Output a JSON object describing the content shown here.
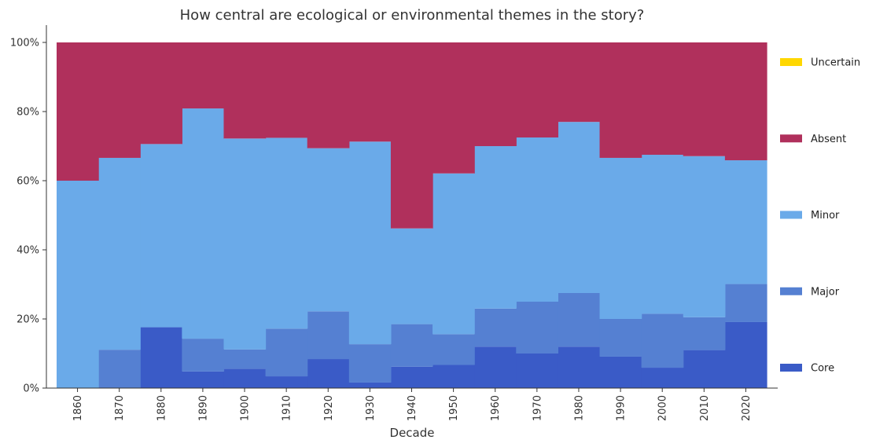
{
  "chart_data": {
    "type": "area",
    "title": "How central are ecological or environmental themes in the story?",
    "xlabel": "Decade",
    "ylabel": "",
    "ylim": [
      0,
      100
    ],
    "yticks": [
      "0%",
      "20%",
      "40%",
      "60%",
      "80%",
      "100%"
    ],
    "categories": [
      "1860",
      "1870",
      "1880",
      "1890",
      "1900",
      "1910",
      "1920",
      "1930",
      "1940",
      "1950",
      "1960",
      "1970",
      "1980",
      "1990",
      "2000",
      "2010",
      "2020"
    ],
    "series": [
      {
        "name": "Core",
        "color": "#3a5bc7",
        "values": [
          0,
          0,
          17.6,
          4.8,
          5.6,
          3.4,
          8.4,
          1.6,
          6.2,
          6.7,
          12,
          10,
          12,
          9.1,
          5.9,
          11,
          19.1
        ]
      },
      {
        "name": "Major",
        "color": "#5580d2",
        "values": [
          0,
          11.1,
          0,
          9.5,
          5.6,
          13.8,
          13.8,
          11.1,
          12.3,
          8.9,
          11,
          15,
          15.5,
          10.9,
          15.6,
          9.5,
          11
        ]
      },
      {
        "name": "Minor",
        "color": "#6aaae9",
        "values": [
          60,
          55.5,
          53,
          66.6,
          61,
          55.2,
          47.2,
          58.6,
          27.7,
          46.5,
          47,
          47.5,
          49.5,
          46.6,
          46,
          46.6,
          35.8
        ]
      },
      {
        "name": "Absent",
        "color": "#b0305c",
        "values": [
          40,
          33.4,
          29.4,
          19.1,
          27.8,
          27.6,
          30.6,
          28.7,
          53.8,
          37.9,
          30,
          27.5,
          23,
          33.4,
          32.5,
          32.9,
          34.1
        ]
      },
      {
        "name": "Uncertain",
        "color": "#ffd700",
        "values": [
          0,
          0,
          0,
          0,
          0,
          0,
          0,
          0,
          0,
          0,
          0,
          0,
          0,
          0,
          0,
          0,
          0
        ]
      }
    ],
    "legend_order": [
      "Uncertain",
      "Absent",
      "Minor",
      "Major",
      "Core"
    ],
    "legend_position": "right"
  }
}
